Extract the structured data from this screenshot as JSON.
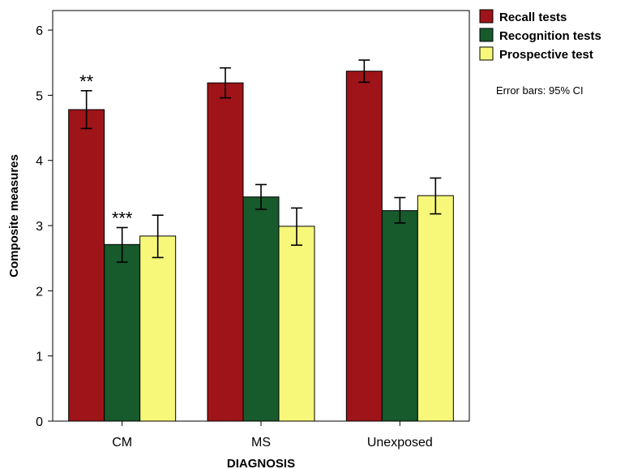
{
  "chart_data": {
    "type": "bar",
    "xlabel": "DIAGNOSIS",
    "ylabel": "Composite measures",
    "ylim": [
      0,
      6.3
    ],
    "yticks": [
      "0",
      "1",
      "2",
      "3",
      "4",
      "5",
      "6"
    ],
    "grid": false,
    "categories": [
      "CM",
      "MS",
      "Unexposed"
    ],
    "series": [
      {
        "name": "Recall tests",
        "color": "#9e1418",
        "values": [
          4.78,
          5.19,
          5.37
        ],
        "ci_low": [
          4.49,
          4.96,
          5.2
        ],
        "ci_high": [
          5.07,
          5.42,
          5.54
        ]
      },
      {
        "name": "Recognition tests",
        "color": "#175a2b",
        "values": [
          2.71,
          3.44,
          3.23
        ],
        "ci_low": [
          2.44,
          3.25,
          3.04
        ],
        "ci_high": [
          2.97,
          3.63,
          3.43
        ]
      },
      {
        "name": "Prospective test",
        "color": "#f7f77a",
        "values": [
          2.84,
          2.99,
          3.46
        ],
        "ci_low": [
          2.51,
          2.7,
          3.18
        ],
        "ci_high": [
          3.16,
          3.27,
          3.73
        ]
      }
    ],
    "annotations": [
      {
        "text": "**",
        "category": "CM",
        "series": "Recall tests"
      },
      {
        "text": "***",
        "category": "CM",
        "series": "Recognition tests"
      }
    ],
    "legend_position": "top-right (outside plot)",
    "note": "Error bars: 95% CI"
  }
}
